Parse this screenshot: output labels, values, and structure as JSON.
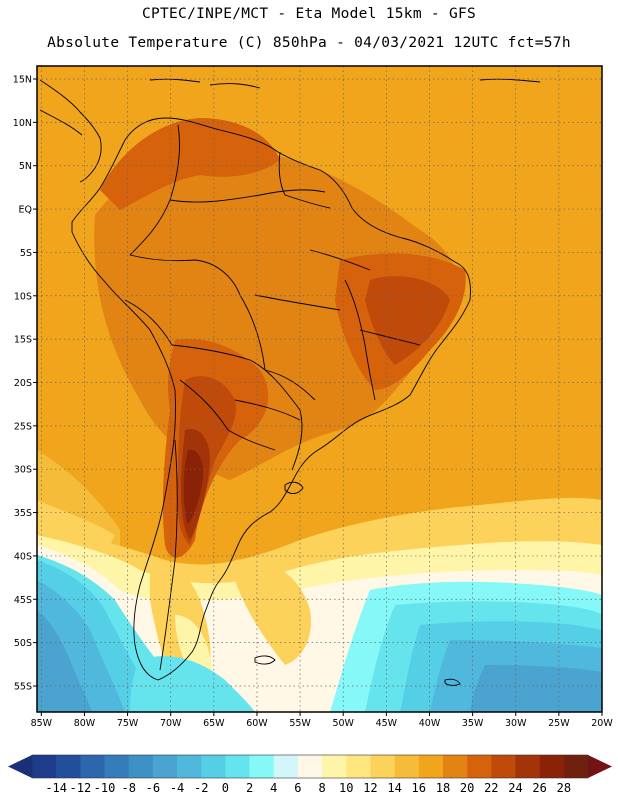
{
  "header": {
    "line1": "CPTEC/INPE/MCT -  Eta Model 15km - GFS",
    "line2": "Absolute Temperature (C) 850hPa - 04/03/2021 12UTC fct=57h"
  },
  "axes": {
    "lat_labels": [
      "15N",
      "10N",
      "5N",
      "EQ",
      "5S",
      "10S",
      "15S",
      "20S",
      "25S",
      "30S",
      "35S",
      "40S",
      "45S",
      "50S",
      "55S"
    ],
    "lat_values": [
      15,
      10,
      5,
      0,
      -5,
      -10,
      -15,
      -20,
      -25,
      -30,
      -35,
      -40,
      -45,
      -50,
      -55
    ],
    "lon_labels": [
      "85W",
      "80W",
      "75W",
      "70W",
      "65W",
      "60W",
      "55W",
      "50W",
      "45W",
      "40W",
      "35W",
      "30W",
      "25W",
      "20W"
    ],
    "lon_values": [
      -85,
      -80,
      -75,
      -70,
      -65,
      -60,
      -55,
      -50,
      -45,
      -40,
      -35,
      -30,
      -25,
      -20
    ],
    "lat_range": [
      -58,
      16.5
    ],
    "lon_range": [
      -85.5,
      -20
    ]
  },
  "colorbar": {
    "labels": [
      "-14",
      "-12",
      "-10",
      "-8",
      "-6",
      "-4",
      "-2",
      "0",
      "2",
      "4",
      "6",
      "8",
      "10",
      "12",
      "14",
      "16",
      "18",
      "20",
      "22",
      "24",
      "26",
      "28"
    ],
    "colors": [
      "#1e3c8c",
      "#224f9c",
      "#2c66ac",
      "#357dba",
      "#3e91c4",
      "#4aa4cf",
      "#4fb8dc",
      "#54cfe6",
      "#66e4ee",
      "#86f8f8",
      "#d2f6fa",
      "#fff8e6",
      "#fff5a8",
      "#ffe680",
      "#fcd25a",
      "#f5bc3a",
      "#f0a51c",
      "#e28414",
      "#d6620c",
      "#bf4a0a",
      "#a33308",
      "#8a2208",
      "#70200c"
    ],
    "under_color": "#1a2f7a",
    "over_color": "#751215"
  },
  "legend_units": "C",
  "map_field": {
    "background_level": 18,
    "levels": [
      {
        "name": "ocean-warm-band",
        "value": 16
      },
      {
        "name": "cold-south-atlantic",
        "value": 2
      },
      {
        "name": "patagonia-cool",
        "value": 8
      },
      {
        "name": "amazon-warm",
        "value": 20
      },
      {
        "name": "northeast-brazil-hot",
        "value": 22
      },
      {
        "name": "chaco-hot-core",
        "value": 26
      }
    ]
  }
}
